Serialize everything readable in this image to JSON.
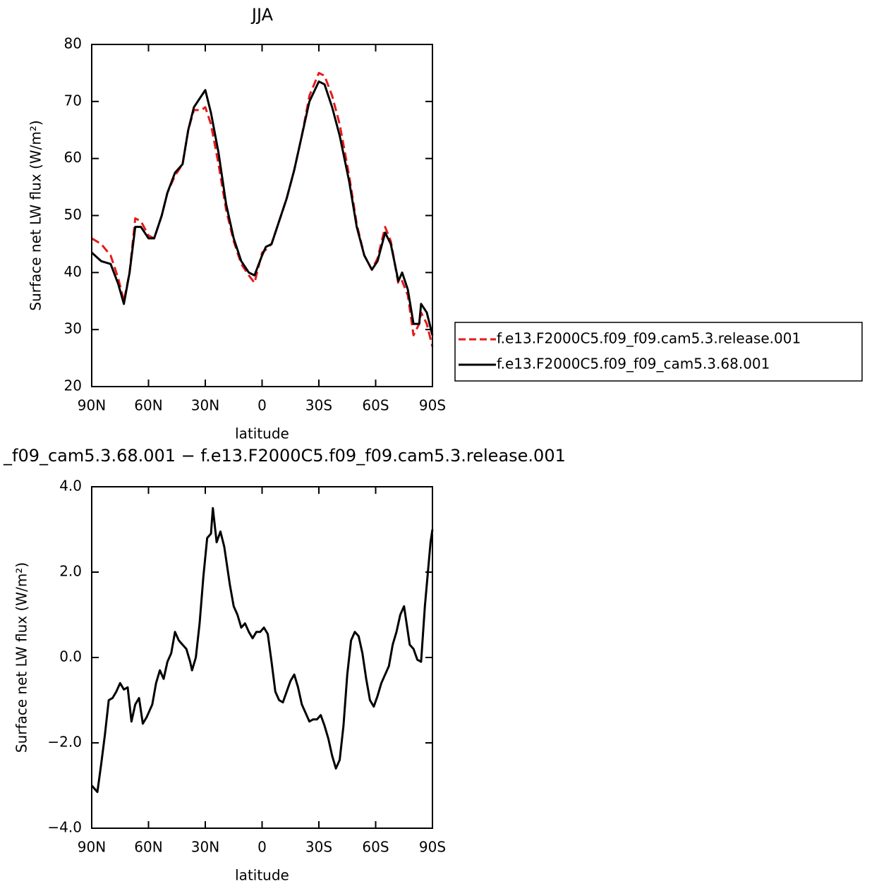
{
  "chart_data": [
    {
      "type": "line",
      "title": "JJA",
      "xlabel": "latitude",
      "ylabel": "Surface net LW flux (W/m²)",
      "x": [
        90,
        85,
        80,
        76,
        73,
        70,
        67,
        64,
        60,
        57,
        53,
        50,
        46,
        42,
        39,
        36,
        32,
        30,
        27,
        23,
        19,
        15,
        11,
        7,
        4,
        0,
        -2,
        -5,
        -9,
        -13,
        -17,
        -21,
        -25,
        -30,
        -33,
        -37,
        -41,
        -46,
        -50,
        -54,
        -58,
        -61,
        -65,
        -68,
        -72,
        -74,
        -77,
        -80,
        -83,
        -84,
        -87,
        -90
      ],
      "series": [
        {
          "name": "f.e13.F2000C5.f09_f09.cam5.3.release.001",
          "color": "#e41a1c",
          "dashed": true,
          "values": [
            46,
            45,
            43,
            39,
            35,
            40,
            49.5,
            49,
            46.5,
            46,
            50,
            54,
            57,
            59,
            65,
            68.5,
            68.5,
            69,
            66,
            59,
            51,
            45.5,
            41.5,
            39.5,
            38.2,
            43.5,
            44,
            45,
            49,
            53,
            58,
            64,
            71,
            75,
            74.5,
            71,
            66,
            57,
            48.5,
            43,
            40.5,
            42.5,
            48,
            45.5,
            38,
            38.5,
            36,
            29,
            31,
            33,
            31,
            27
          ]
        },
        {
          "name": "f.e13.F2000C5.f09_f09_cam5.3.68.001",
          "color": "#000000",
          "dashed": false,
          "values": [
            43.5,
            42,
            41.5,
            38,
            34.5,
            40,
            48,
            48,
            46,
            46,
            50,
            54,
            57.5,
            59,
            65,
            69,
            71,
            72,
            68,
            61,
            52,
            46,
            42,
            40,
            39.5,
            43,
            44.5,
            45,
            49,
            53,
            58,
            64,
            70,
            73.5,
            73,
            69,
            64,
            56,
            48,
            43,
            40.5,
            42,
            47,
            45,
            38.5,
            40,
            37,
            31,
            31,
            34.5,
            33,
            29
          ]
        }
      ],
      "xlim": [
        90,
        -90
      ],
      "xticks": [
        {
          "value": 90,
          "label": "90N"
        },
        {
          "value": 60,
          "label": "60N"
        },
        {
          "value": 30,
          "label": "30N"
        },
        0,
        {
          "value": -30,
          "label": "30S"
        },
        {
          "value": -60,
          "label": "60S"
        },
        {
          "value": -90,
          "label": "90S"
        }
      ],
      "ylim": [
        20,
        80
      ],
      "yticks": [
        20,
        30,
        40,
        50,
        60,
        70,
        80
      ],
      "legend": "right"
    },
    {
      "type": "line",
      "title": "_f09_cam5.3.68.001 − f.e13.F2000C5.f09_f09.cam5.3.release.001",
      "xlabel": "latitude",
      "ylabel": "Surface net LW flux (W/m²)",
      "x": [
        90,
        87,
        85,
        83,
        81,
        79,
        77,
        75,
        73,
        71,
        69,
        67,
        65,
        63,
        61,
        58,
        56,
        54,
        52,
        50,
        48,
        46,
        44,
        42,
        40,
        38,
        37,
        35,
        33,
        31,
        29,
        27,
        26,
        24,
        22,
        20,
        17,
        15,
        13,
        11,
        9,
        7,
        5,
        3,
        1,
        -1,
        -3,
        -5,
        -7,
        -9,
        -11,
        -13,
        -15,
        -17,
        -19,
        -21,
        -23,
        -25,
        -27,
        -29,
        -31,
        -33,
        -35,
        -37,
        -39,
        -41,
        -43,
        -45,
        -47,
        -49,
        -51,
        -53,
        -55,
        -57,
        -59,
        -61,
        -63,
        -65,
        -67,
        -69,
        -71,
        -73,
        -75,
        -76,
        -78,
        -80,
        -82,
        -84,
        -86,
        -87,
        -89,
        -90
      ],
      "series": [
        {
          "color": "#000000",
          "values": [
            -3.0,
            -3.15,
            -2.5,
            -1.8,
            -1.0,
            -0.95,
            -0.8,
            -0.6,
            -0.75,
            -0.7,
            -1.5,
            -1.1,
            -0.95,
            -1.55,
            -1.4,
            -1.1,
            -0.6,
            -0.3,
            -0.5,
            -0.1,
            0.1,
            0.6,
            0.4,
            0.3,
            0.2,
            -0.1,
            -0.3,
            0.0,
            0.8,
            1.9,
            2.8,
            2.9,
            3.5,
            2.7,
            2.95,
            2.6,
            1.7,
            1.2,
            1.0,
            0.7,
            0.8,
            0.6,
            0.45,
            0.6,
            0.6,
            0.7,
            0.55,
            -0.1,
            -0.8,
            -1.0,
            -1.05,
            -0.8,
            -0.55,
            -0.4,
            -0.7,
            -1.1,
            -1.3,
            -1.5,
            -1.45,
            -1.45,
            -1.35,
            -1.6,
            -1.9,
            -2.3,
            -2.6,
            -2.4,
            -1.6,
            -0.4,
            0.4,
            0.6,
            0.5,
            0.1,
            -0.5,
            -1.0,
            -1.15,
            -0.9,
            -0.6,
            -0.4,
            -0.2,
            0.3,
            0.6,
            1.0,
            1.2,
            0.9,
            0.3,
            0.2,
            -0.05,
            -0.1,
            1.2,
            1.7,
            2.7,
            3.0
          ]
        }
      ],
      "xlim": [
        90,
        -90
      ],
      "xticks": [
        {
          "value": 90,
          "label": "90N"
        },
        {
          "value": 60,
          "label": "60N"
        },
        {
          "value": 30,
          "label": "30N"
        },
        0,
        {
          "value": -30,
          "label": "30S"
        },
        {
          "value": -60,
          "label": "60S"
        },
        {
          "value": -90,
          "label": "90S"
        }
      ],
      "ylim": [
        -4,
        4
      ],
      "yticks": [
        {
          "value": -4,
          "label": "−4.0"
        },
        {
          "value": -2,
          "label": "−2.0"
        },
        {
          "value": 0,
          "label": "0.0"
        },
        {
          "value": 2,
          "label": "2.0"
        },
        {
          "value": 4,
          "label": "4.0"
        }
      ]
    }
  ]
}
